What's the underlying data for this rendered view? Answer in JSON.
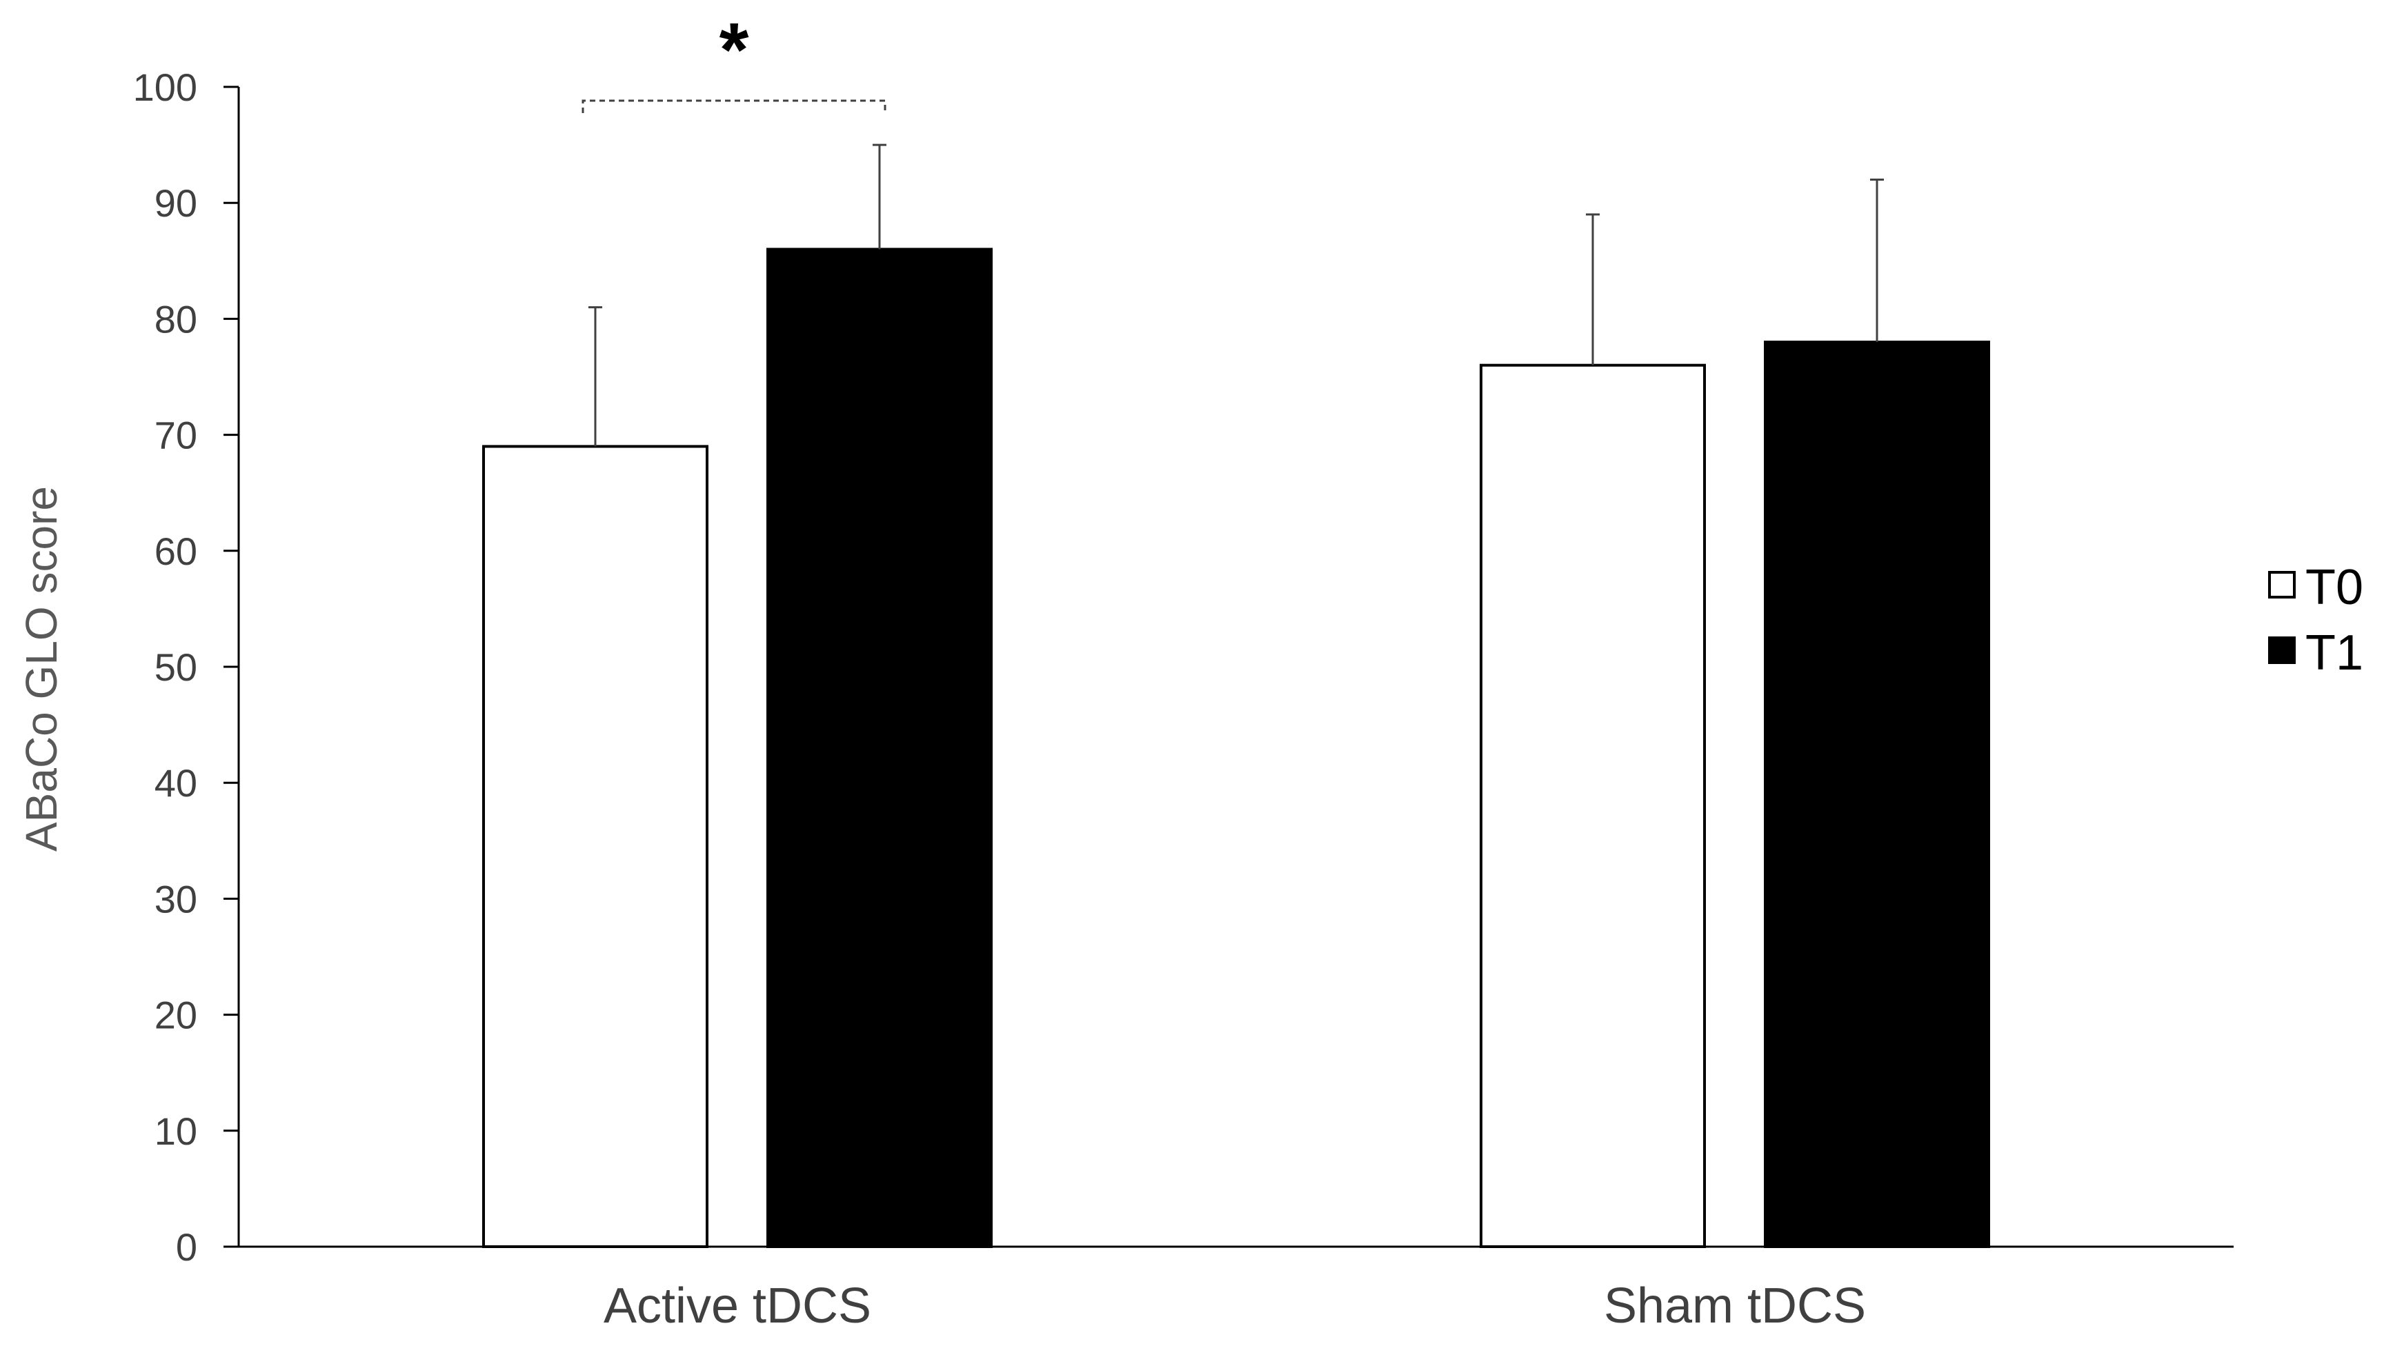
{
  "chart_data": {
    "type": "bar",
    "categories": [
      "Active tDCS",
      "Sham tDCS"
    ],
    "series": [
      {
        "name": "T0",
        "values": [
          69,
          76
        ],
        "errors": [
          12,
          13
        ],
        "color": "#ffffff",
        "stroke": "#000000"
      },
      {
        "name": "T1",
        "values": [
          86,
          78
        ],
        "errors": [
          9,
          14
        ],
        "color": "#000000",
        "stroke": "#000000"
      }
    ],
    "title": "",
    "xlabel": "",
    "ylabel": "ABaCo GLO  score",
    "ylim": [
      0,
      100
    ],
    "yticks": [
      0,
      10,
      20,
      30,
      40,
      50,
      60,
      70,
      80,
      90,
      100
    ],
    "grid": false,
    "legend_position": "right",
    "annotations": [
      {
        "text": "*",
        "category": "Active tDCS",
        "between": [
          "T0",
          "T1"
        ]
      }
    ]
  }
}
